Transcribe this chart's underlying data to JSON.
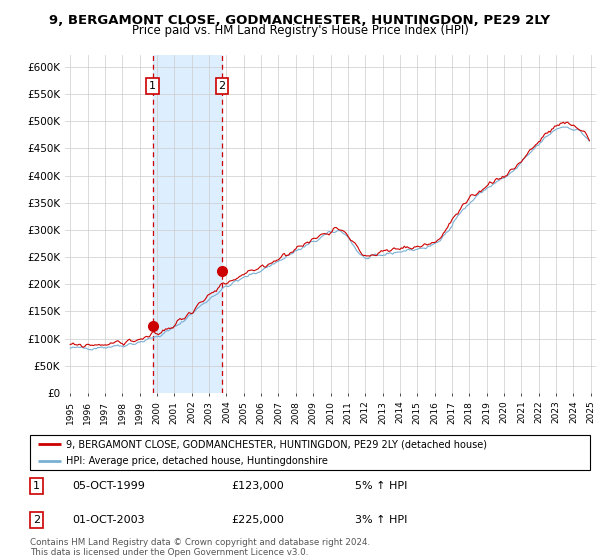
{
  "title": "9, BERGAMONT CLOSE, GODMANCHESTER, HUNTINGDON, PE29 2LY",
  "subtitle": "Price paid vs. HM Land Registry's House Price Index (HPI)",
  "legend_red": "9, BERGAMONT CLOSE, GODMANCHESTER, HUNTINGDON, PE29 2LY (detached house)",
  "legend_blue": "HPI: Average price, detached house, Huntingdonshire",
  "transaction1_date": "05-OCT-1999",
  "transaction1_price": 123000,
  "transaction1_hpi": "5% ↑ HPI",
  "transaction2_date": "01-OCT-2003",
  "transaction2_price": 225000,
  "transaction2_hpi": "3% ↑ HPI",
  "footer": "Contains HM Land Registry data © Crown copyright and database right 2024.\nThis data is licensed under the Open Government Licence v3.0.",
  "y_ticks": [
    0,
    50000,
    100000,
    150000,
    200000,
    250000,
    300000,
    350000,
    400000,
    450000,
    500000,
    550000,
    600000
  ],
  "y_labels": [
    "£0",
    "£50K",
    "£100K",
    "£150K",
    "£200K",
    "£250K",
    "£300K",
    "£350K",
    "£400K",
    "£450K",
    "£500K",
    "£550K",
    "£600K"
  ],
  "x_start_year": 1995,
  "x_end_year": 2025,
  "line_red_color": "#cc0000",
  "line_blue_color": "#7ab0d4",
  "bg_color": "#ffffff",
  "grid_color": "#cccccc",
  "shade_color": "#ddeeff",
  "transaction1_x": 1999.75,
  "transaction2_x": 2003.75,
  "marker_color": "#cc0000",
  "waypoints_t": [
    0,
    0.05,
    0.1,
    0.17,
    0.3,
    0.38,
    0.45,
    0.52,
    0.57,
    0.62,
    0.7,
    0.75,
    0.8,
    0.85,
    0.9,
    0.95,
    1.0
  ],
  "waypoints_v": [
    82000,
    84000,
    88000,
    105000,
    195000,
    232000,
    268000,
    298000,
    248000,
    258000,
    272000,
    330000,
    375000,
    405000,
    455000,
    490000,
    465000
  ]
}
